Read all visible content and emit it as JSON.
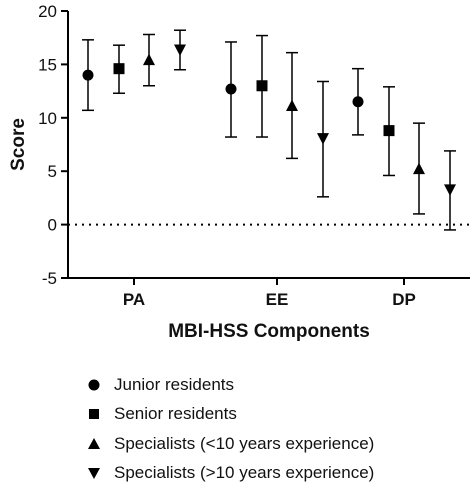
{
  "chart_data": {
    "type": "scatter",
    "subtype": "mean with error bars",
    "xlabel": "MBI-HSS Components",
    "ylabel": "Score",
    "categories": [
      "PA",
      "EE",
      "DP"
    ],
    "ylim": [
      -5,
      20
    ],
    "yticks": [
      -5,
      0,
      5,
      10,
      15,
      20
    ],
    "reference_line": {
      "y": 0,
      "style": "dotted"
    },
    "grid": false,
    "legend_position": "bottom",
    "series": [
      {
        "name": "Junior residents",
        "marker": "circle",
        "values": [
          14.0,
          12.7,
          11.5
        ],
        "lower": [
          10.7,
          8.2,
          8.4
        ],
        "upper": [
          17.3,
          17.1,
          14.6
        ]
      },
      {
        "name": "Senior residents",
        "marker": "square",
        "values": [
          14.6,
          13.0,
          8.8
        ],
        "lower": [
          12.3,
          8.2,
          4.6
        ],
        "upper": [
          16.8,
          17.7,
          12.9
        ]
      },
      {
        "name": "Specialists (<10 years experience)",
        "marker": "triangle-up",
        "values": [
          15.4,
          11.1,
          5.2
        ],
        "lower": [
          13.0,
          6.2,
          1.0
        ],
        "upper": [
          17.8,
          16.1,
          9.5
        ]
      },
      {
        "name": "Specialists (>10 years experience)",
        "marker": "triangle-down",
        "values": [
          16.4,
          8.1,
          3.3
        ],
        "lower": [
          14.5,
          2.6,
          -0.5
        ],
        "upper": [
          18.2,
          13.4,
          6.9
        ]
      }
    ]
  },
  "colors": {
    "marks": "#000000",
    "text": "#111111"
  }
}
